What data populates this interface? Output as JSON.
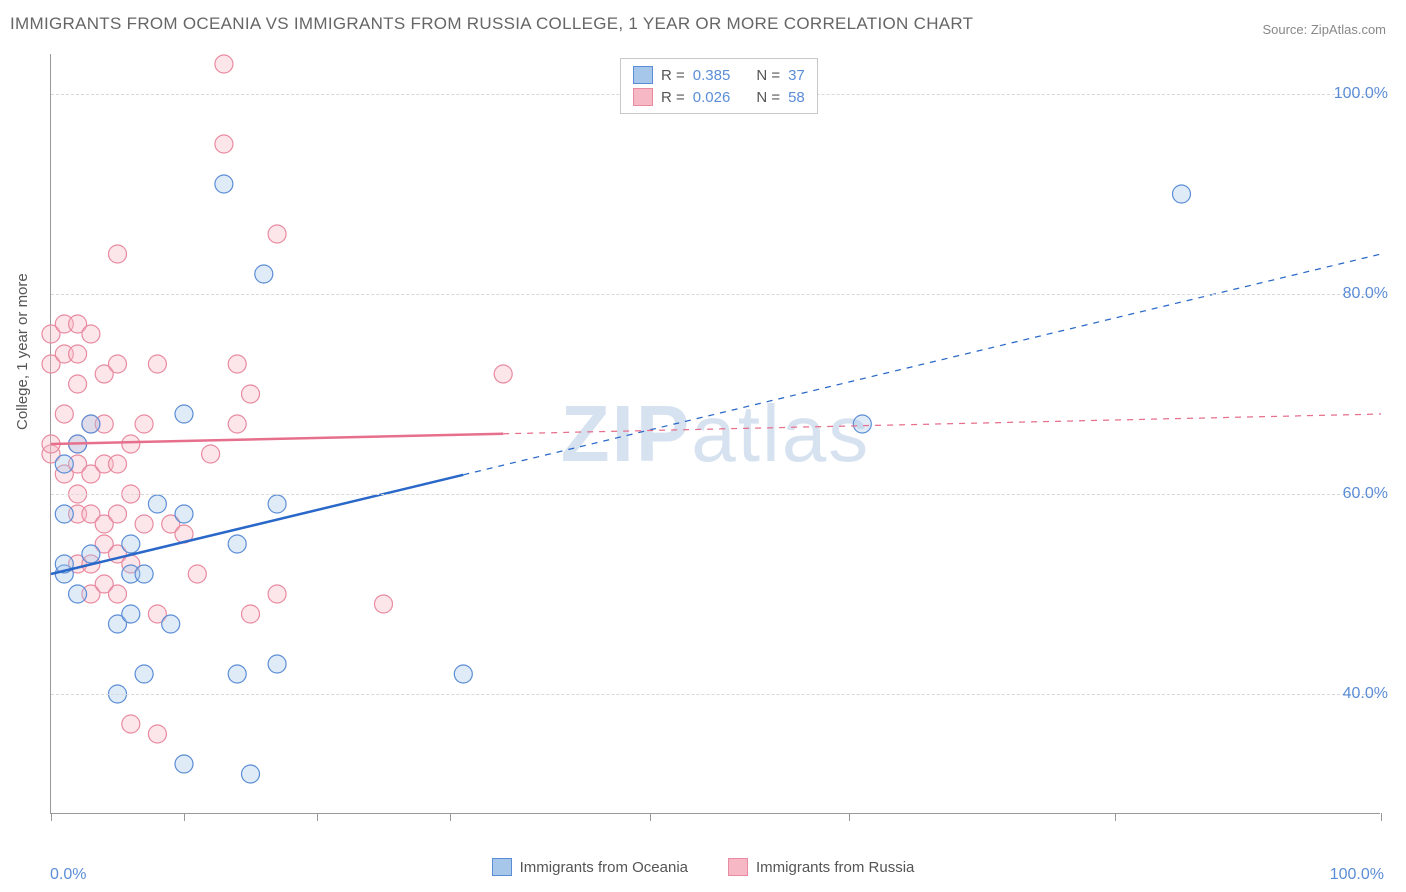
{
  "title": "IMMIGRANTS FROM OCEANIA VS IMMIGRANTS FROM RUSSIA COLLEGE, 1 YEAR OR MORE CORRELATION CHART",
  "source": "Source: ZipAtlas.com",
  "ylabel": "College, 1 year or more",
  "watermark_a": "ZIP",
  "watermark_b": "atlas",
  "chart": {
    "type": "scatter",
    "background_color": "#ffffff",
    "grid_color": "#d8d8d8",
    "axis_color": "#999999",
    "label_color": "#555555",
    "tick_label_color": "#5b8dd6",
    "title_color": "#666666",
    "title_fontsize": 17,
    "label_fontsize": 15,
    "tick_fontsize": 16,
    "xlim": [
      0,
      100
    ],
    "ylim": [
      28,
      104
    ],
    "y_grid_values": [
      40,
      60,
      80,
      100
    ],
    "y_tick_labels": [
      "40.0%",
      "60.0%",
      "80.0%",
      "100.0%"
    ],
    "x_ticks": [
      0,
      10,
      20,
      30,
      45,
      60,
      80,
      100
    ],
    "x_tick_labels": {
      "0": "0.0%",
      "100": "100.0%"
    },
    "marker_radius": 9,
    "marker_fill_opacity": 0.35,
    "marker_stroke_width": 1.2,
    "line_width": 2.5,
    "series": [
      {
        "name": "Immigrants from Oceania",
        "color_fill": "#a7c7ea",
        "color_stroke": "#5b8dd6",
        "line_color": "#2968c8",
        "R": "0.385",
        "N": "37",
        "trend": {
          "x1": 0,
          "y1": 52,
          "x2": 100,
          "y2": 84,
          "solid_until_x": 31
        },
        "points": [
          [
            1,
            63
          ],
          [
            1,
            58
          ],
          [
            1,
            52
          ],
          [
            1,
            53
          ],
          [
            2,
            65
          ],
          [
            2,
            50
          ],
          [
            3,
            67
          ],
          [
            3,
            54
          ],
          [
            5,
            47
          ],
          [
            5,
            40
          ],
          [
            6,
            55
          ],
          [
            6,
            48
          ],
          [
            6,
            52
          ],
          [
            7,
            42
          ],
          [
            7,
            52
          ],
          [
            8,
            59
          ],
          [
            9,
            47
          ],
          [
            10,
            58
          ],
          [
            10,
            33
          ],
          [
            10,
            68
          ],
          [
            13,
            91
          ],
          [
            14,
            42
          ],
          [
            14,
            55
          ],
          [
            15,
            32
          ],
          [
            16,
            82
          ],
          [
            17,
            59
          ],
          [
            17,
            43
          ],
          [
            31,
            42
          ],
          [
            61,
            67
          ],
          [
            85,
            90
          ]
        ]
      },
      {
        "name": "Immigrants from Russia",
        "color_fill": "#f5b8c4",
        "color_stroke": "#e88aa0",
        "line_color": "#e66f8c",
        "R": "0.026",
        "N": "58",
        "trend": {
          "x1": 0,
          "y1": 65,
          "x2": 100,
          "y2": 68,
          "solid_until_x": 34
        },
        "points": [
          [
            0,
            64
          ],
          [
            0,
            65
          ],
          [
            0,
            73
          ],
          [
            0,
            76
          ],
          [
            1,
            62
          ],
          [
            1,
            68
          ],
          [
            1,
            74
          ],
          [
            1,
            77
          ],
          [
            2,
            53
          ],
          [
            2,
            58
          ],
          [
            2,
            60
          ],
          [
            2,
            63
          ],
          [
            2,
            65
          ],
          [
            2,
            71
          ],
          [
            2,
            74
          ],
          [
            2,
            77
          ],
          [
            3,
            50
          ],
          [
            3,
            53
          ],
          [
            3,
            58
          ],
          [
            3,
            62
          ],
          [
            3,
            67
          ],
          [
            3,
            76
          ],
          [
            4,
            51
          ],
          [
            4,
            55
          ],
          [
            4,
            57
          ],
          [
            4,
            63
          ],
          [
            4,
            67
          ],
          [
            4,
            72
          ],
          [
            5,
            50
          ],
          [
            5,
            54
          ],
          [
            5,
            58
          ],
          [
            5,
            63
          ],
          [
            5,
            73
          ],
          [
            5,
            84
          ],
          [
            6,
            37
          ],
          [
            6,
            53
          ],
          [
            6,
            60
          ],
          [
            6,
            65
          ],
          [
            7,
            57
          ],
          [
            7,
            67
          ],
          [
            8,
            36
          ],
          [
            8,
            48
          ],
          [
            8,
            73
          ],
          [
            9,
            57
          ],
          [
            10,
            56
          ],
          [
            11,
            52
          ],
          [
            12,
            64
          ],
          [
            13,
            95
          ],
          [
            13,
            103
          ],
          [
            14,
            67
          ],
          [
            14,
            73
          ],
          [
            15,
            70
          ],
          [
            15,
            48
          ],
          [
            17,
            86
          ],
          [
            17,
            50
          ],
          [
            25,
            49
          ],
          [
            34,
            72
          ]
        ]
      }
    ],
    "legend": {
      "R_label": "R =",
      "N_label": "N ="
    }
  }
}
